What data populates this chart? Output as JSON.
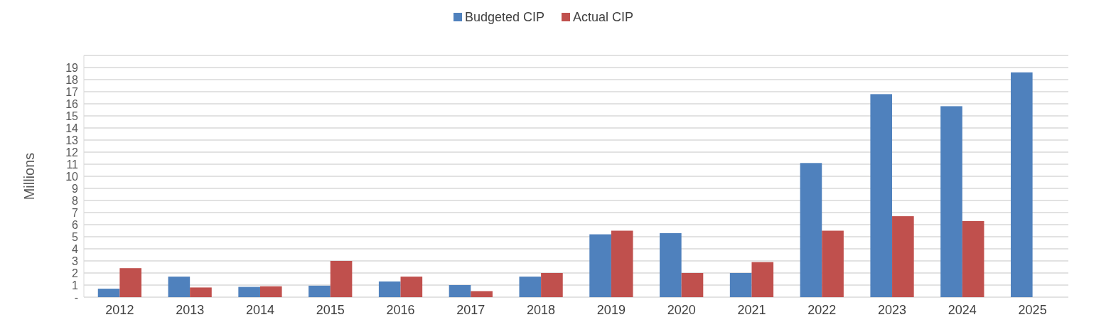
{
  "chart_data": {
    "type": "bar",
    "ylabel": "Millions",
    "categories": [
      "2012",
      "2013",
      "2014",
      "2015",
      "2016",
      "2017",
      "2018",
      "2019",
      "2020",
      "2021",
      "2022",
      "2023",
      "2024",
      "2025"
    ],
    "series": [
      {
        "name": "Budgeted CIP",
        "color": "#4f81bd",
        "values": [
          0.7,
          1.7,
          0.85,
          0.95,
          1.3,
          1.0,
          1.7,
          5.2,
          5.3,
          2.0,
          11.1,
          16.8,
          15.8,
          18.6
        ]
      },
      {
        "name": "Actual CIP",
        "color": "#c0504d",
        "values": [
          2.4,
          0.8,
          0.9,
          3.0,
          1.7,
          0.5,
          2.0,
          5.5,
          2.0,
          2.9,
          5.5,
          6.7,
          6.3,
          null
        ]
      }
    ],
    "ylim": [
      0,
      20
    ],
    "yticks": [
      {
        "value": 0,
        "label": "-"
      },
      1,
      2,
      3,
      4,
      5,
      6,
      7,
      8,
      9,
      10,
      11,
      12,
      13,
      14,
      15,
      16,
      17,
      18,
      19,
      {
        "value": 20,
        "label": null
      }
    ],
    "grid": "y",
    "legend": "top"
  }
}
